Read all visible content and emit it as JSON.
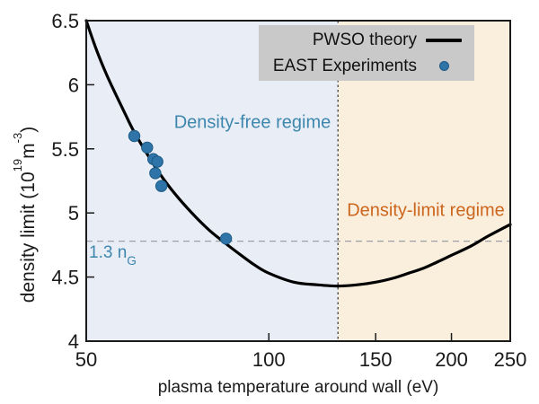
{
  "chart_data": {
    "type": "line",
    "xscale": "log",
    "xlabel": "plasma temperature around wall (eV)",
    "ylabel": "density limit (10^19 m^-3)",
    "ylabel_parts": {
      "pre": "density limit (10",
      "sup1": "19",
      "mid": "m",
      "sup2": "-3",
      "post": ")"
    },
    "xlim": [
      50,
      250
    ],
    "ylim": [
      4,
      6.5
    ],
    "x_tick_values": [
      50,
      100,
      150,
      200,
      250
    ],
    "x_tick_labels": [
      "50",
      "100",
      "150",
      "200",
      "250"
    ],
    "y_tick_values": [
      4,
      4.5,
      5,
      5.5,
      6,
      6.5
    ],
    "y_tick_labels": [
      "4",
      "4.5",
      "5",
      "5.5",
      "6",
      "6.5"
    ],
    "grid": false,
    "legend_position": "top-right",
    "series": [
      {
        "name": "PWSO theory",
        "type": "line",
        "color": "#000000",
        "points": [
          [
            50,
            6.5
          ],
          [
            52,
            6.27
          ],
          [
            54,
            6.08
          ],
          [
            56,
            5.92
          ],
          [
            58,
            5.77
          ],
          [
            60,
            5.63
          ],
          [
            63,
            5.46
          ],
          [
            66,
            5.31
          ],
          [
            70,
            5.15
          ],
          [
            75,
            4.99
          ],
          [
            80,
            4.86
          ],
          [
            85,
            4.76
          ],
          [
            90,
            4.67
          ],
          [
            95,
            4.59
          ],
          [
            100,
            4.53
          ],
          [
            110,
            4.46
          ],
          [
            120,
            4.44
          ],
          [
            130,
            4.43
          ],
          [
            140,
            4.44
          ],
          [
            150,
            4.46
          ],
          [
            160,
            4.49
          ],
          [
            170,
            4.53
          ],
          [
            180,
            4.57
          ],
          [
            190,
            4.62
          ],
          [
            200,
            4.67
          ],
          [
            215,
            4.74
          ],
          [
            230,
            4.82
          ],
          [
            250,
            4.91
          ]
        ]
      },
      {
        "name": "EAST Experiments",
        "type": "scatter",
        "color": "#2e74a8",
        "edge_color": "#1c5a85",
        "points": [
          [
            60,
            5.6
          ],
          [
            63,
            5.51
          ],
          [
            64.5,
            5.42
          ],
          [
            65.5,
            5.4
          ],
          [
            65,
            5.31
          ],
          [
            66.5,
            5.21
          ],
          [
            85,
            4.8
          ]
        ]
      }
    ],
    "annotations": {
      "vline_x": 130,
      "hline_y": 4.78,
      "hline_label": "1.3 n",
      "hline_label_sub": "G",
      "region_left_label": "Density-free regime",
      "region_right_label": "Density-limit regime"
    }
  },
  "legend": {
    "items": [
      {
        "label": "PWSO theory",
        "symbol": "line"
      },
      {
        "label": "EAST Experiments",
        "symbol": "dot"
      }
    ]
  },
  "colors": {
    "region_left_bg": "#e9eef6",
    "region_right_bg": "#faeedd",
    "region_left_text": "#3d86ae",
    "region_right_text": "#cd661d",
    "hline": "#9aa0a6",
    "vline": "#3f3f3f",
    "legend_bg": "#c9c9c9",
    "curve": "#000000",
    "dot": "#2e74a8",
    "dot_edge": "#1c5a85",
    "axis": "#1a1a1a",
    "figure_bg": "#ffffff"
  }
}
